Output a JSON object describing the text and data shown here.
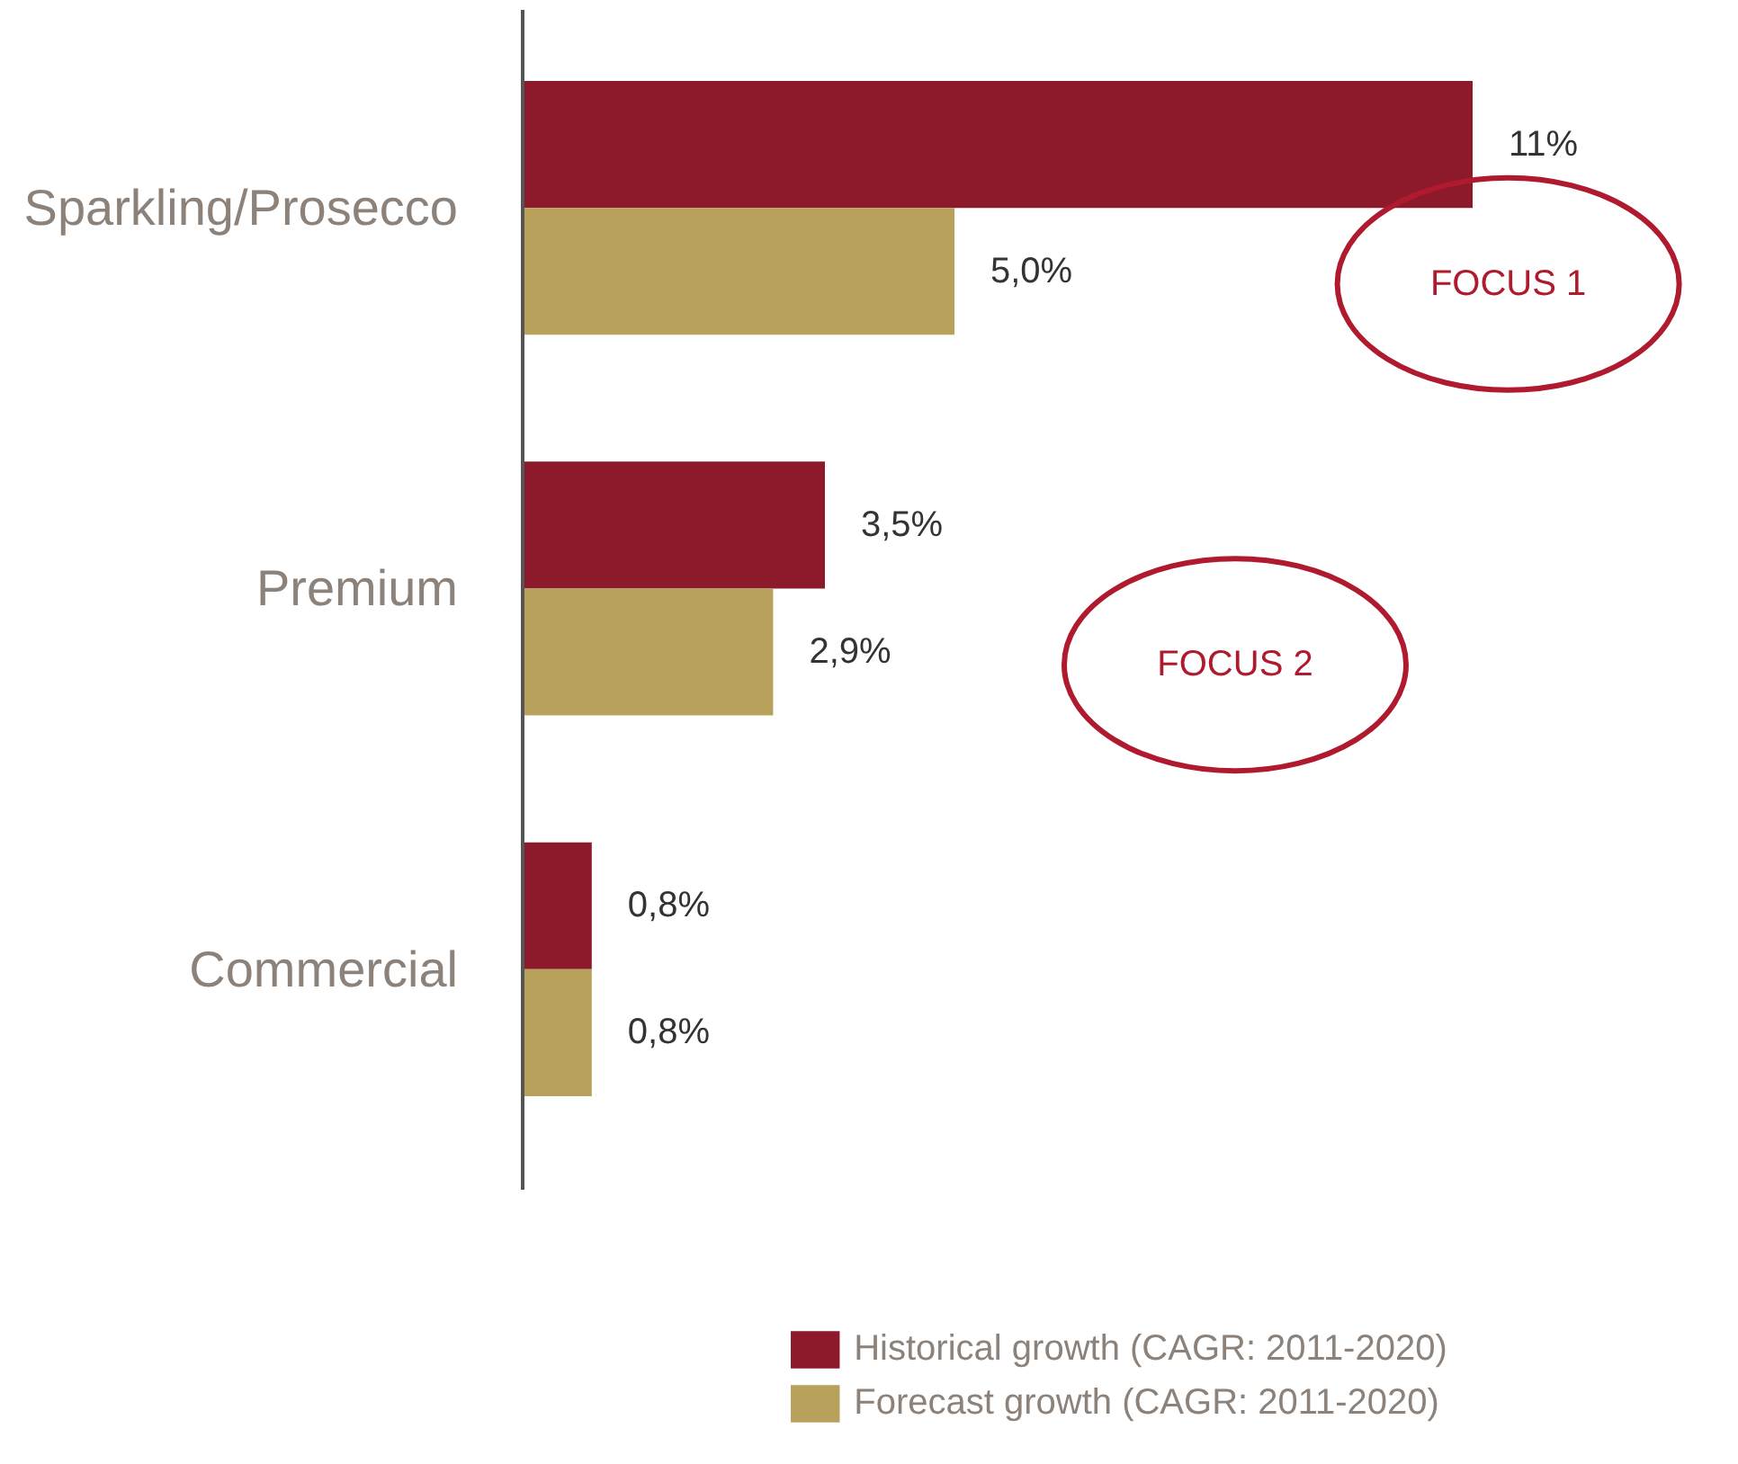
{
  "chart_data": {
    "type": "bar",
    "orientation": "horizontal",
    "categories": [
      "Sparkling/Prosecco",
      "Premium",
      "Commercial"
    ],
    "series": [
      {
        "name": "Historical growth (CAGR: 2011-2020)",
        "color": "#8c1a2b",
        "values": [
          11,
          3.5,
          0.8
        ],
        "value_labels": [
          "11%",
          "3,5%",
          "0,8%"
        ]
      },
      {
        "name": "Forecast growth (CAGR: 2011-2020)",
        "color": "#b8a15a",
        "values": [
          5.0,
          2.9,
          0.8
        ],
        "value_labels": [
          "5,0%",
          "2,9%",
          "0,8%"
        ]
      }
    ],
    "annotations": [
      "FOCUS 1",
      "FOCUS 2"
    ],
    "legend": "bottom",
    "grid": false
  }
}
